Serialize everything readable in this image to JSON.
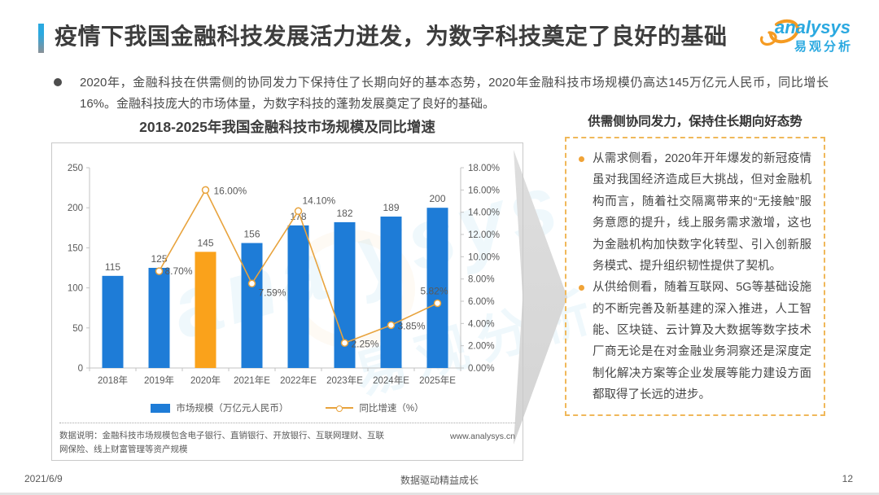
{
  "header": {
    "title": "疫情下我国金融科技发展活力迸发，为数字科技奠定了良好的基础",
    "logo_text": "analysys",
    "logo_subtext": "易观分析"
  },
  "intro_bullet": "2020年，金融科技在供需侧的协同发力下保持住了长期向好的基本态势，2020年金融科技市场规模仍高达145万亿元人民币，同比增长16%。金融科技庞大的市场体量，为数字科技的蓬勃发展奠定了良好的基础。",
  "chart": {
    "title": "2018-2025年我国金融科技市场规模及同比增速",
    "note": "数据说明：金融科技市场规模包含电子银行、直销银行、开放银行、互联网理财、互联网保险、线上财富管理等资产规模",
    "source": "www.analysys.cn"
  },
  "chart_data": {
    "type": "bar",
    "title": "2018-2025年我国金融科技市场规模及同比增速",
    "categories": [
      "2018年",
      "2019年",
      "2020年",
      "2021年E",
      "2022年E",
      "2023年E",
      "2024年E",
      "2025年E"
    ],
    "series": [
      {
        "name": "市场规模（万亿元人民币）",
        "type": "bar",
        "axis": "left",
        "values": [
          115,
          125,
          145,
          156,
          178,
          182,
          189,
          200
        ]
      },
      {
        "name": "同比增速（%）",
        "type": "line",
        "axis": "right",
        "values": [
          null,
          8.7,
          16.0,
          7.59,
          14.1,
          2.25,
          3.85,
          5.82
        ],
        "point_labels": [
          "",
          "8.70%",
          "16.00%",
          "7.59%",
          "14.10%",
          "2.25%",
          "3.85%",
          "5.82%"
        ]
      }
    ],
    "left_axis": {
      "min": 0,
      "max": 250,
      "step": 50
    },
    "right_axis": {
      "min": 0,
      "max": 18,
      "step": 2,
      "suffix": "%"
    },
    "highlight_index": 2,
    "bar_color": "#1e7cd7",
    "highlight_color": "#faa21b",
    "line_color": "#e8a33d",
    "grid": false,
    "legend_position": "bottom"
  },
  "side_panel": {
    "title": "供需侧协同发力，保持住长期向好态势",
    "bullets": [
      "从需求侧看，2020年开年爆发的新冠疫情虽对我国经济造成巨大挑战，但对金融机构而言，随着社交隔离带来的“无接触”服务意愿的提升，线上服务需求激增，这也为金融机构加快数字化转型、引入创新服务模式、提升组织韧性提供了契机。",
      "从供给侧看，随着互联网、5G等基础设施的不断完善及新基建的深入推进，人工智能、区块链、云计算及大数据等数字技术厂商无论是在对金融业务洞察还是深度定制化解决方案等企业发展等能力建设方面都取得了长远的进步。"
    ]
  },
  "footer": {
    "date": "2021/6/9",
    "center": "数据驱动精益成长",
    "page": "12"
  },
  "watermark": {
    "text": "analysys",
    "subtext": "易观分析"
  }
}
